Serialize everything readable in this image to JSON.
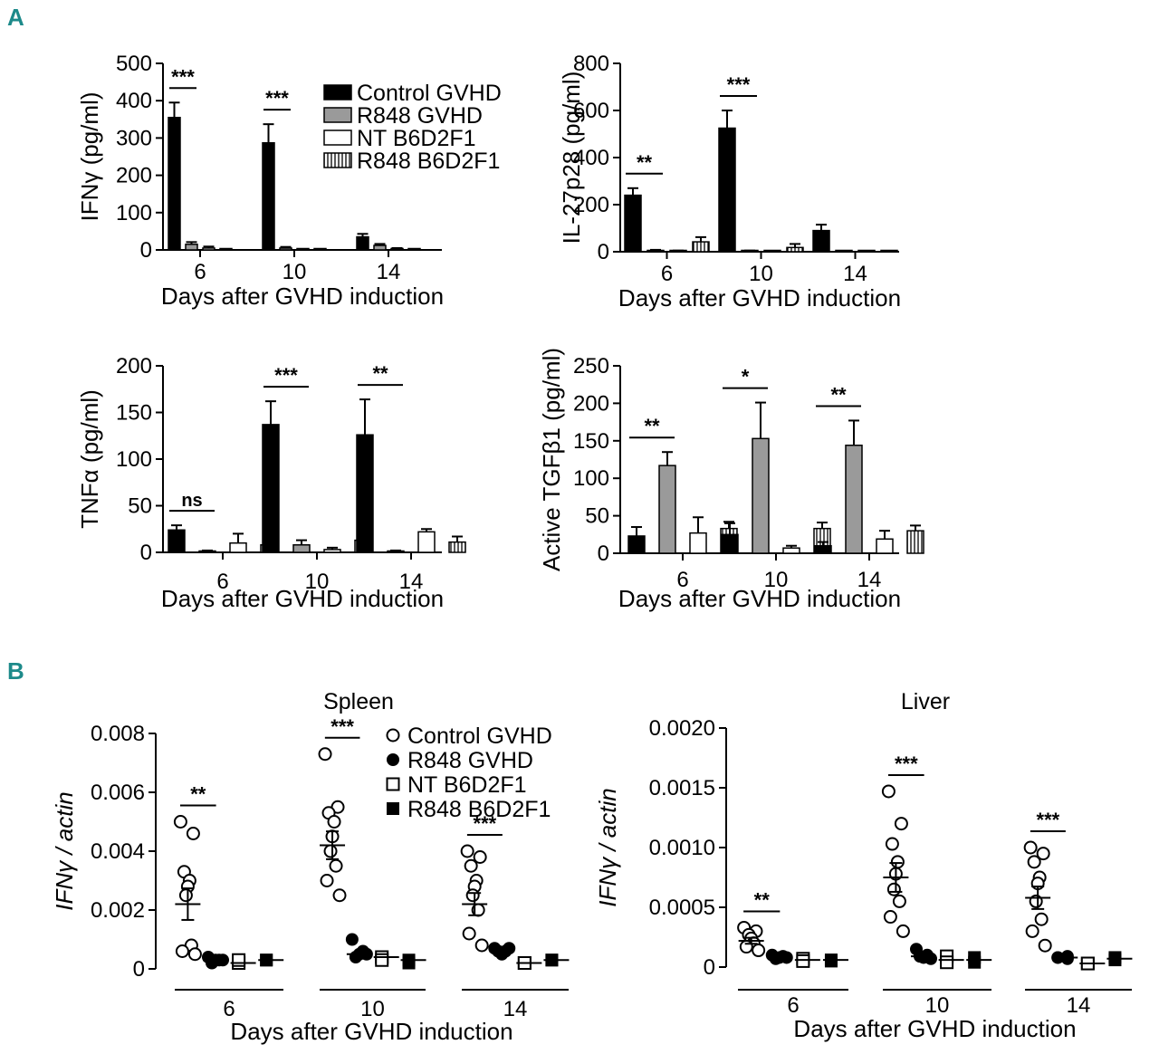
{
  "panel_labels": {
    "a": "A",
    "b": "B"
  },
  "colors": {
    "control_gvhd": "#000000",
    "r848_gvhd": "#9a9a9a",
    "nt_b6d2f1": "#ffffff",
    "r848_b6d2f1": "#ffffff",
    "panel_label": "#1d8a8a"
  },
  "chart_data": [
    {
      "type": "bar",
      "ylabel": "IFNγ (pg/ml)",
      "xlabel": "Days after GVHD induction",
      "categories": [
        "6",
        "10",
        "14"
      ],
      "ylim": [
        0,
        500
      ],
      "yticks": [
        0,
        100,
        200,
        300,
        400,
        500
      ],
      "legend": {
        "placement": "top-right",
        "entries": [
          "Control GVHD",
          "R848 GVHD",
          "NT B6D2F1",
          "R848 B6D2F1"
        ]
      },
      "series": [
        {
          "name": "Control GVHD",
          "values": [
            355,
            287,
            35
          ],
          "errors": [
            40,
            50,
            8
          ]
        },
        {
          "name": "R848 GVHD",
          "values": [
            15,
            5,
            12
          ],
          "errors": [
            6,
            3,
            4
          ]
        },
        {
          "name": "NT B6D2F1",
          "values": [
            5,
            1,
            3
          ],
          "errors": [
            4,
            1,
            2
          ]
        },
        {
          "name": "R848 B6D2F1",
          "values": [
            1,
            1,
            1
          ],
          "errors": [
            1,
            1,
            1
          ]
        }
      ],
      "significance": [
        {
          "category": "6",
          "label": "***"
        },
        {
          "category": "10",
          "label": "***"
        }
      ]
    },
    {
      "type": "bar",
      "ylabel": "IL-27p28 (pg/ml)",
      "xlabel": "Days after GVHD induction",
      "categories": [
        "6",
        "10",
        "14"
      ],
      "ylim": [
        0,
        800
      ],
      "yticks": [
        0,
        200,
        400,
        600,
        800
      ],
      "series": [
        {
          "name": "Control GVHD",
          "values": [
            240,
            525,
            90
          ],
          "errors": [
            30,
            75,
            25
          ]
        },
        {
          "name": "R848 GVHD",
          "values": [
            5,
            3,
            0
          ],
          "errors": [
            3,
            2,
            0
          ]
        },
        {
          "name": "NT B6D2F1",
          "values": [
            3,
            0,
            0
          ],
          "errors": [
            2,
            0,
            0
          ]
        },
        {
          "name": "R848 B6D2F1",
          "values": [
            42,
            18,
            0
          ],
          "errors": [
            20,
            15,
            0
          ]
        }
      ],
      "significance": [
        {
          "category": "6",
          "label": "**"
        },
        {
          "category": "10",
          "label": "***"
        }
      ]
    },
    {
      "type": "bar",
      "ylabel": "TNFα (pg/ml)",
      "xlabel": "Days after GVHD induction",
      "categories": [
        "6",
        "10",
        "14"
      ],
      "ylim": [
        0,
        200
      ],
      "yticks": [
        0,
        50,
        100,
        150,
        200
      ],
      "series": [
        {
          "name": "Control GVHD",
          "values": [
            24,
            137,
            126
          ],
          "errors": [
            5,
            25,
            38
          ]
        },
        {
          "name": "R848 GVHD",
          "values": [
            1,
            8,
            1
          ],
          "errors": [
            1,
            5,
            1
          ]
        },
        {
          "name": "NT B6D2F1",
          "values": [
            10,
            3,
            22
          ],
          "errors": [
            10,
            2,
            3
          ]
        },
        {
          "name": "R848 B6D2F1",
          "values": [
            8,
            13,
            11
          ],
          "errors": [
            3,
            7,
            6
          ]
        }
      ],
      "significance": [
        {
          "category": "6",
          "label": "ns"
        },
        {
          "category": "10",
          "label": "***"
        },
        {
          "category": "14",
          "label": "**"
        }
      ]
    },
    {
      "type": "bar",
      "ylabel": "Active TGFβ1 (pg/ml)",
      "xlabel": "Days after GVHD induction",
      "categories": [
        "6",
        "10",
        "14"
      ],
      "ylim": [
        0,
        250
      ],
      "yticks": [
        0,
        50,
        100,
        150,
        200,
        250
      ],
      "series": [
        {
          "name": "Control GVHD",
          "values": [
            23,
            25,
            10
          ],
          "errors": [
            12,
            15,
            5
          ]
        },
        {
          "name": "R848 GVHD",
          "values": [
            117,
            153,
            144
          ],
          "errors": [
            18,
            48,
            33
          ]
        },
        {
          "name": "NT B6D2F1",
          "values": [
            27,
            7,
            19
          ],
          "errors": [
            21,
            3,
            11
          ]
        },
        {
          "name": "R848 B6D2F1",
          "values": [
            33,
            33,
            30
          ],
          "errors": [
            9,
            8,
            7
          ]
        }
      ],
      "significance": [
        {
          "category": "6",
          "label": "**"
        },
        {
          "category": "10",
          "label": "*"
        },
        {
          "category": "14",
          "label": "**"
        }
      ]
    },
    {
      "type": "scatter",
      "title": "Spleen",
      "ylabel": "IFNγ / actin",
      "xlabel": "Days after GVHD induction",
      "categories": [
        "6",
        "10",
        "14"
      ],
      "ylim": [
        0,
        0.008
      ],
      "yticks": [
        0,
        0.002,
        0.004,
        0.006,
        0.008
      ],
      "ytick_labels": [
        "0",
        "0.002",
        "0.004",
        "0.006",
        "0.008"
      ],
      "legend": {
        "placement": "top-right",
        "entries": [
          "Control GVHD",
          "R848 GVHD",
          "NT B6D2F1",
          "R848 B6D2F1"
        ]
      },
      "series": [
        {
          "name": "Control GVHD",
          "mean": [
            0.0022,
            0.0042,
            0.0022
          ],
          "points": [
            [
              0.005,
              0.0046,
              0.0033,
              0.003,
              0.0028,
              0.0025,
              0.0008,
              0.0006,
              0.0005
            ],
            [
              0.0073,
              0.0055,
              0.0053,
              0.005,
              0.0045,
              0.004,
              0.0035,
              0.003,
              0.0025
            ],
            [
              0.004,
              0.0038,
              0.0035,
              0.003,
              0.0028,
              0.0025,
              0.002,
              0.0012,
              0.0008
            ]
          ]
        },
        {
          "name": "R848 GVHD",
          "mean": [
            0.0003,
            0.0005,
            0.0006
          ],
          "points": [
            [
              0.0004,
              0.0003,
              0.0003,
              0.0002,
              0.0003
            ],
            [
              0.001,
              0.0006,
              0.0005,
              0.0004,
              0.0005
            ],
            [
              0.0007,
              0.0006,
              0.0005,
              0.0006,
              0.0007
            ]
          ]
        },
        {
          "name": "NT B6D2F1",
          "mean": [
            0.0002,
            0.0004,
            0.0002
          ],
          "points": [
            [
              0.0002,
              0.0003
            ],
            [
              0.0004,
              0.0003
            ],
            [
              0.0002,
              0.0002
            ]
          ]
        },
        {
          "name": "R848 B6D2F1",
          "mean": [
            0.0003,
            0.0003,
            0.0003
          ],
          "points": [
            [
              0.0003,
              0.0003
            ],
            [
              0.0003,
              0.0002
            ],
            [
              0.0003,
              0.0003
            ]
          ]
        }
      ],
      "significance": [
        {
          "category": "6",
          "label": "**"
        },
        {
          "category": "10",
          "label": "***"
        },
        {
          "category": "14",
          "label": "***"
        }
      ]
    },
    {
      "type": "scatter",
      "title": "Liver",
      "ylabel": "IFNγ / actin",
      "xlabel": "Days after GVHD induction",
      "categories": [
        "6",
        "10",
        "14"
      ],
      "ylim": [
        0,
        0.002
      ],
      "yticks": [
        0,
        0.0005,
        0.001,
        0.0015,
        0.002
      ],
      "ytick_labels": [
        "0",
        "0.0005",
        "0.0010",
        "0.0015",
        "0.0020"
      ],
      "series": [
        {
          "name": "Control GVHD",
          "mean": [
            0.00022,
            0.00075,
            0.00058
          ],
          "points": [
            [
              0.00033,
              0.0003,
              0.00027,
              0.00024,
              0.0002,
              0.00017,
              0.00014
            ],
            [
              0.00147,
              0.0012,
              0.00103,
              0.00088,
              0.00078,
              0.00065,
              0.00055,
              0.00042,
              0.0003
            ],
            [
              0.001,
              0.00095,
              0.00088,
              0.00075,
              0.0007,
              0.00055,
              0.0004,
              0.0003,
              0.00018
            ]
          ]
        },
        {
          "name": "R848 GVHD",
          "mean": [
            8e-05,
            9e-05,
            8e-05
          ],
          "points": [
            [
              0.0001,
              9e-05,
              8e-05,
              7e-05,
              8e-05
            ],
            [
              0.00015,
              0.0001,
              8e-05,
              9e-05,
              7e-05
            ],
            [
              8e-05,
              9e-05,
              7e-05,
              8e-05
            ]
          ]
        },
        {
          "name": "NT B6D2F1",
          "mean": [
            6e-05,
            6e-05,
            3e-05
          ],
          "points": [
            [
              7e-05,
              5e-05
            ],
            [
              9e-05,
              4e-05
            ],
            [
              3e-05,
              3e-05
            ]
          ]
        },
        {
          "name": "R848 B6D2F1",
          "mean": [
            6e-05,
            6e-05,
            7e-05
          ],
          "points": [
            [
              6e-05,
              5e-05
            ],
            [
              8e-05,
              4e-05
            ],
            [
              8e-05,
              6e-05
            ]
          ]
        }
      ],
      "significance": [
        {
          "category": "6",
          "label": "**"
        },
        {
          "category": "10",
          "label": "***"
        },
        {
          "category": "14",
          "label": "***"
        }
      ]
    }
  ]
}
